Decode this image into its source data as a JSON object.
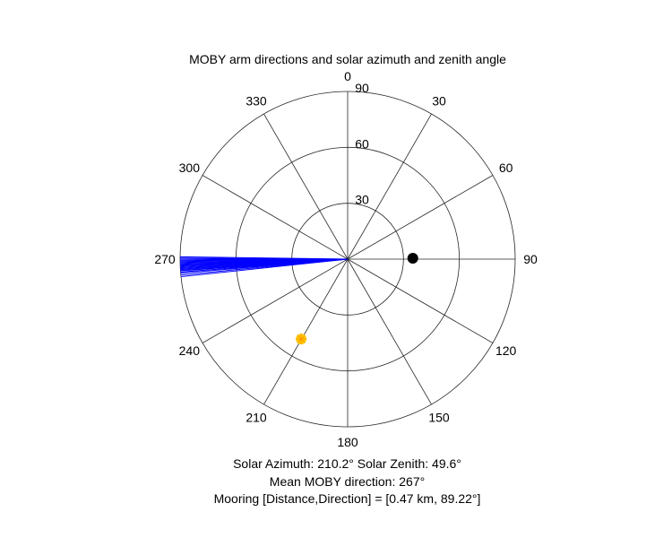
{
  "chart_data": {
    "type": "polar",
    "title": "MOBY arm directions and solar azimuth and zenith angle",
    "theta_zero_location": "top",
    "theta_direction": "clockwise",
    "theta_ticks": [
      "0",
      "30",
      "60",
      "90",
      "120",
      "150",
      "180",
      "210",
      "240",
      "270",
      "300",
      "330"
    ],
    "r_ticks": [
      "30",
      "60",
      "90"
    ],
    "r_max": 90,
    "arm_directions": {
      "color": "#0000ff",
      "length": 90,
      "azimuths": [
        264.0,
        264.6,
        265.2,
        265.6,
        266.0,
        266.3,
        266.6,
        266.9,
        267.2,
        267.5,
        267.8,
        268.1,
        268.4,
        268.7,
        269.0,
        269.3,
        269.6,
        270.0,
        270.4,
        270.8
      ]
    },
    "sun": {
      "azimuth": 210.2,
      "zenith": 49.6,
      "color": "#ffcc00"
    },
    "mooring": {
      "direction": 89.22,
      "r": 35,
      "color": "#000000"
    },
    "annotations": {
      "solar_line": "Solar Azimuth: 210.2°    Solar Zenith: 49.6°",
      "moby_line": "Mean MOBY direction: 267°",
      "mooring_line": "Mooring [Distance,Direction] = [0.47 km, 89.22°]"
    }
  }
}
